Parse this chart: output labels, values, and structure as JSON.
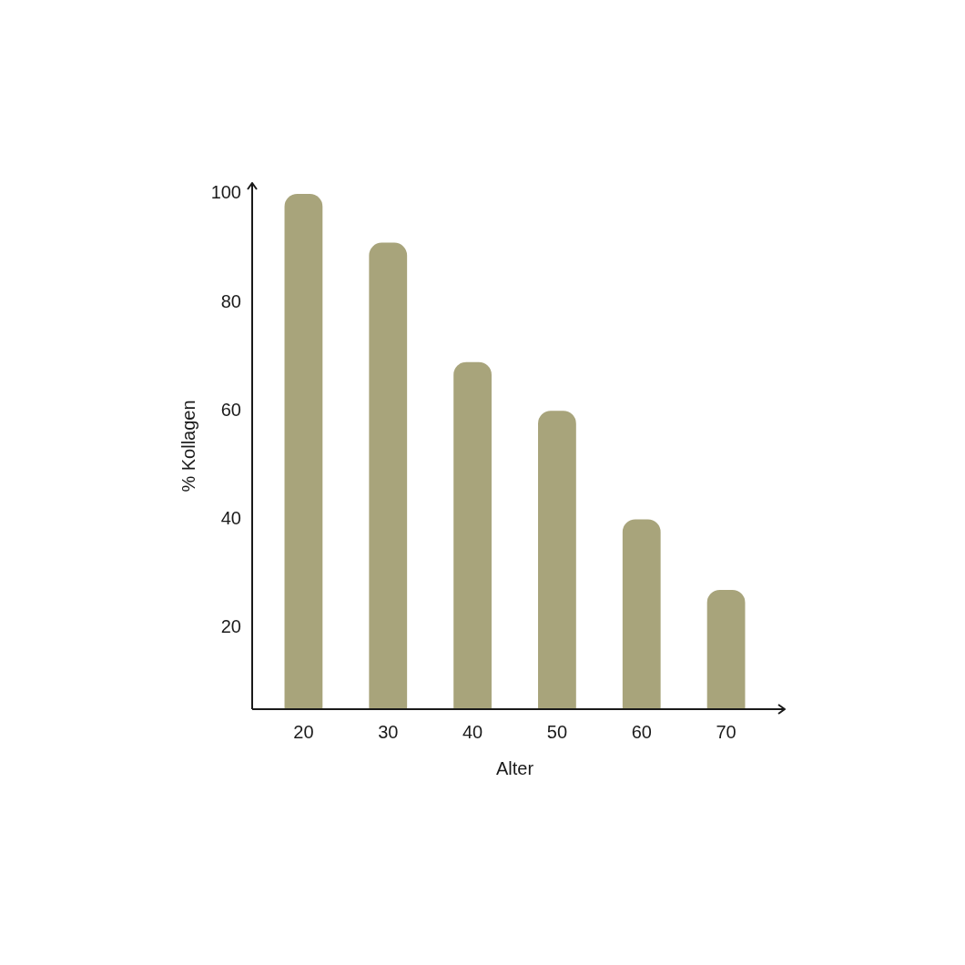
{
  "chart_data": {
    "type": "bar",
    "xlabel": "Alter",
    "ylabel": "% Kollagen",
    "categories": [
      "20",
      "30",
      "40",
      "50",
      "60",
      "70"
    ],
    "values": [
      100,
      91,
      69,
      60,
      40,
      27
    ],
    "color": "#a8a47b",
    "ylim": [
      5,
      102
    ],
    "yticks": [
      20,
      40,
      60,
      80,
      100
    ]
  }
}
